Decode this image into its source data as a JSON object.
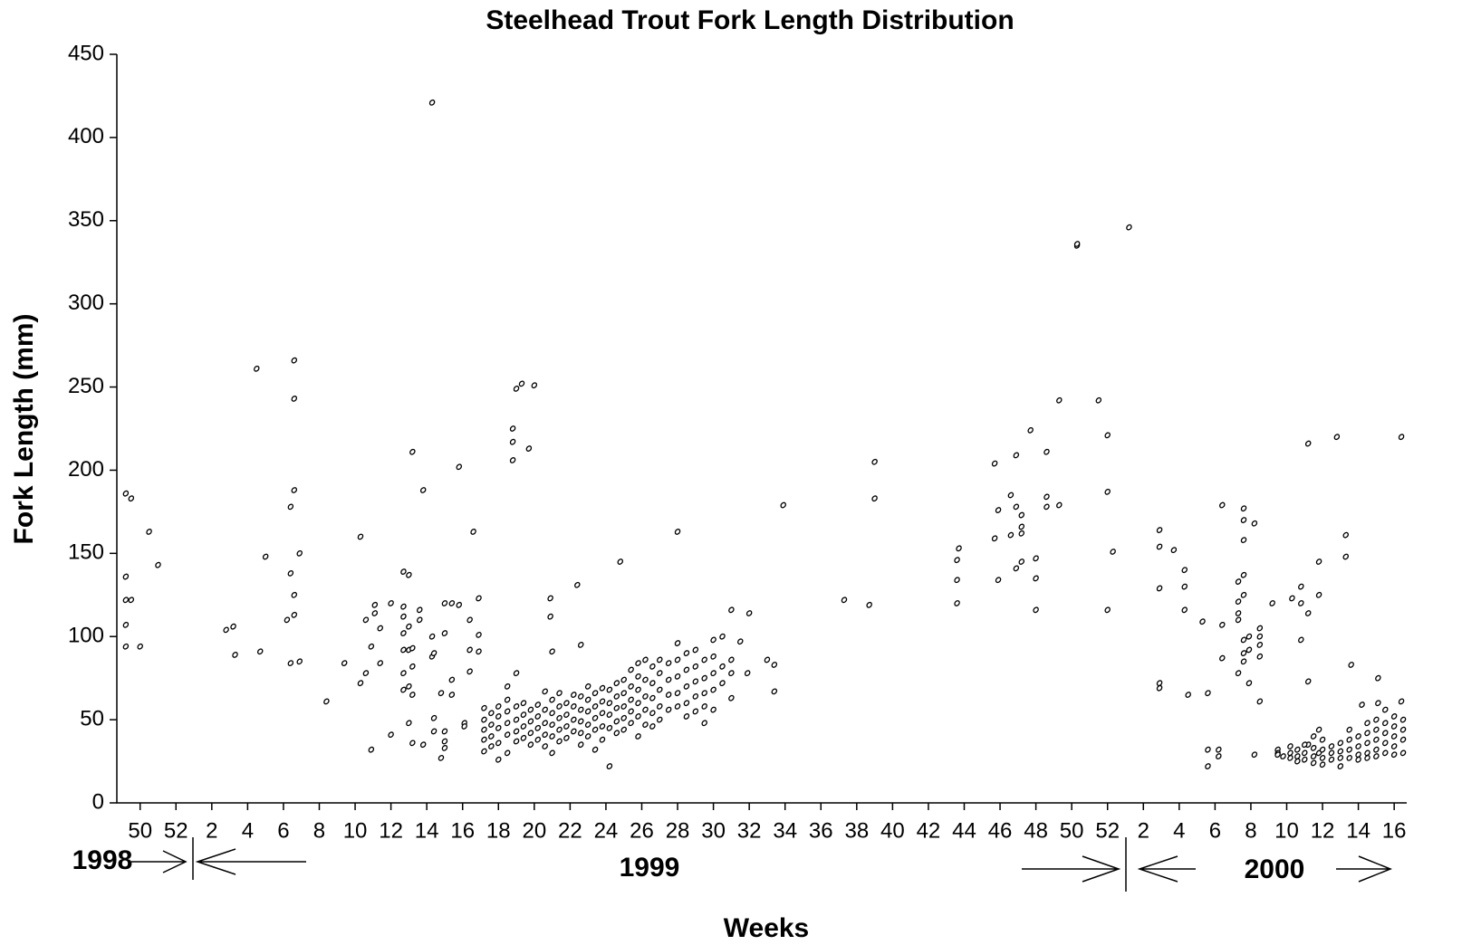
{
  "chart_data": {
    "type": "scatter",
    "title": "Steelhead Trout Fork Length Distribution",
    "xlabel": "Weeks",
    "ylabel": "Fork Length (mm)",
    "year_labels": [
      "1998",
      "1999",
      "2000"
    ],
    "color": "#000000",
    "xlim": [
      48.7,
      120.7
    ],
    "ylim": [
      0,
      450
    ],
    "yticks": [
      0,
      50,
      100,
      150,
      200,
      250,
      300,
      350,
      400,
      450
    ],
    "xticks": [
      50,
      52,
      {
        "value": 54,
        "label": "2"
      },
      {
        "value": 56,
        "label": "4"
      },
      {
        "value": 58,
        "label": "6"
      },
      {
        "value": 60,
        "label": "8"
      },
      {
        "value": 62,
        "label": "10"
      },
      {
        "value": 64,
        "label": "12"
      },
      {
        "value": 66,
        "label": "14"
      },
      {
        "value": 68,
        "label": "16"
      },
      {
        "value": 70,
        "label": "18"
      },
      {
        "value": 72,
        "label": "20"
      },
      {
        "value": 74,
        "label": "22"
      },
      {
        "value": 76,
        "label": "24"
      },
      {
        "value": 78,
        "label": "26"
      },
      {
        "value": 80,
        "label": "28"
      },
      {
        "value": 82,
        "label": "30"
      },
      {
        "value": 84,
        "label": "32"
      },
      {
        "value": 86,
        "label": "34"
      },
      {
        "value": 88,
        "label": "36"
      },
      {
        "value": 90,
        "label": "38"
      },
      {
        "value": 92,
        "label": "40"
      },
      {
        "value": 94,
        "label": "42"
      },
      {
        "value": 96,
        "label": "44"
      },
      {
        "value": 98,
        "label": "46"
      },
      {
        "value": 100,
        "label": "48"
      },
      {
        "value": 102,
        "label": "50"
      },
      {
        "value": 104,
        "label": "52"
      },
      {
        "value": 106,
        "label": "2"
      },
      {
        "value": 108,
        "label": "4"
      },
      {
        "value": 110,
        "label": "6"
      },
      {
        "value": 112,
        "label": "8"
      },
      {
        "value": 114,
        "label": "10"
      },
      {
        "value": 116,
        "label": "12"
      },
      {
        "value": 118,
        "label": "14"
      },
      {
        "value": 120,
        "label": "16"
      }
    ],
    "x": [
      49.2,
      49.2,
      49.2,
      49.2,
      49.2,
      49.5,
      49.5,
      50,
      50.5,
      51,
      54.8,
      55.2,
      55.3,
      56.5,
      56.7,
      57,
      58.2,
      58.4,
      58.4,
      58.4,
      58.6,
      58.6,
      58.6,
      58.6,
      58.6,
      58.9,
      58.9,
      60.4,
      61.4,
      62.3,
      62.3,
      62.6,
      62.6,
      62.9,
      62.9,
      63.1,
      63.1,
      63.4,
      63.4,
      64,
      64,
      64.7,
      64.7,
      64.7,
      64.7,
      64.7,
      64.7,
      64.7,
      65,
      65,
      65,
      65,
      65,
      65.2,
      65.2,
      65.2,
      65.2,
      65.2,
      65.6,
      65.6,
      65.8,
      65.8,
      66.3,
      66.3,
      66.3,
      66.4,
      66.4,
      66.4,
      66.8,
      66.8,
      67,
      67,
      67,
      67,
      67,
      67.4,
      67.4,
      67.4,
      67.8,
      67.8,
      68.1,
      68.1,
      68.4,
      68.4,
      68.4,
      68.6,
      68.9,
      68.9,
      68.9,
      69.2,
      69.2,
      69.2,
      69.2,
      69.2,
      69.6,
      69.6,
      69.6,
      69.6,
      70,
      70,
      70,
      70,
      70,
      70.5,
      70.5,
      70.5,
      70.5,
      70.5,
      70.5,
      71,
      71,
      71,
      71,
      71,
      71.4,
      71.4,
      71.4,
      71.4,
      71.8,
      71.8,
      71.8,
      71.8,
      72.2,
      72.2,
      72.2,
      72.2,
      72.6,
      72.6,
      72.6,
      72.6,
      72.6,
      73,
      73,
      73,
      73,
      73,
      73.4,
      73.4,
      73.4,
      73.4,
      73.4,
      73.8,
      73.8,
      73.8,
      73.8,
      74.2,
      74.2,
      74.2,
      74.2,
      74.6,
      74.6,
      74.6,
      74.6,
      74.6,
      75,
      75,
      75,
      75,
      75,
      75.4,
      75.4,
      75.4,
      75.4,
      75.4,
      75.8,
      75.8,
      75.8,
      75.8,
      75.8,
      76.2,
      76.2,
      76.2,
      76.2,
      76.2,
      76.6,
      76.6,
      76.6,
      76.6,
      76.6,
      77,
      77,
      77,
      77,
      77,
      77.4,
      77.4,
      77.4,
      77.4,
      77.4,
      77.8,
      77.8,
      77.8,
      77.8,
      77.8,
      77.8,
      78.2,
      78.2,
      78.2,
      78.2,
      78.2,
      78.6,
      78.6,
      78.6,
      78.6,
      78.6,
      79,
      79,
      79,
      79,
      79,
      79.5,
      79.5,
      79.5,
      79.5,
      80,
      80,
      80,
      80,
      80,
      80.5,
      80.5,
      80.5,
      80.5,
      80.5,
      81,
      81,
      81,
      81,
      81,
      81.5,
      81.5,
      81.5,
      81.5,
      81.5,
      82,
      82,
      82,
      82,
      82,
      82.5,
      82.5,
      82.5,
      83,
      83,
      83,
      83,
      83.5,
      84,
      70.8,
      70.8,
      70.8,
      71,
      71.3,
      71.7,
      72,
      72.9,
      72.9,
      73,
      74.4,
      74.6,
      76.8,
      80,
      83.9,
      85,
      85.4,
      85.4,
      85.9,
      89.3,
      90.7,
      91,
      91,
      95.6,
      95.6,
      95.6,
      95.7,
      97.7,
      97.7,
      97.9,
      97.9,
      98.6,
      98.6,
      98.9,
      98.9,
      98.9,
      99.2,
      99.2,
      99.2,
      99.2,
      99.7,
      100,
      100,
      100,
      100.6,
      100.6,
      100.6,
      101.3,
      101.3,
      102.3,
      102.3,
      103.5,
      104,
      104,
      104,
      104.3,
      105.2,
      106.9,
      106.9,
      106.9,
      106.9,
      106.9,
      107.7,
      108.3,
      108.3,
      108.3,
      108.5,
      109.3,
      109.6,
      109.6,
      109.6,
      110.2,
      110.2,
      110.4,
      110.4,
      110.4,
      111.3,
      111.3,
      111.3,
      111.3,
      111.3,
      111.6,
      111.6,
      111.6,
      111.6,
      111.6,
      111.6,
      111.6,
      111.6,
      111.9,
      111.9,
      111.9,
      112.2,
      112.2,
      112.5,
      112.5,
      112.5,
      112.5,
      112.5,
      113.2,
      113.5,
      113.5,
      113.5,
      113.8,
      114.3,
      114.8,
      114.8,
      114.8,
      115.2,
      115.2,
      115.2,
      115.2,
      115.8,
      115.8,
      115.8,
      115.8,
      116.8,
      117.3,
      117.3,
      117.6,
      118.2,
      119.1,
      119.1,
      120.4,
      120.4,
      114.2,
      114.2,
      114.2,
      114.6,
      114.6,
      114.6,
      115,
      115,
      115,
      115.5,
      115.5,
      115.5,
      115.5,
      116,
      116,
      116,
      116,
      116.5,
      116.5,
      116.5,
      117,
      117,
      117,
      117,
      117.5,
      117.5,
      117.5,
      117.5,
      118,
      118,
      118,
      118,
      118.5,
      118.5,
      118.5,
      118.5,
      118.5,
      119,
      119,
      119,
      119,
      119,
      119.5,
      119.5,
      119.5,
      119.5,
      119.5,
      120,
      120,
      120,
      120,
      120,
      120.5,
      120.5,
      120.5,
      120.5
    ],
    "values": [
      186,
      136,
      107,
      94,
      122,
      183,
      122,
      94,
      163,
      143,
      104,
      106,
      89,
      261,
      91,
      148,
      110,
      178,
      138,
      84,
      266,
      243,
      188,
      125,
      113,
      150,
      85,
      61,
      84,
      160,
      72,
      110,
      78,
      94,
      32,
      114,
      119,
      105,
      84,
      41,
      120,
      139,
      118,
      112,
      102,
      92,
      78,
      68,
      137,
      106,
      92,
      70,
      48,
      211,
      93,
      82,
      65,
      36,
      116,
      110,
      188,
      35,
      421,
      100,
      88,
      90,
      51,
      43,
      27,
      66,
      120,
      102,
      43,
      37,
      33,
      120,
      74,
      65,
      202,
      119,
      48,
      46,
      110,
      92,
      79,
      163,
      123,
      101,
      91,
      57,
      50,
      44,
      38,
      31,
      54,
      47,
      40,
      34,
      58,
      52,
      45,
      36,
      26,
      70,
      62,
      55,
      48,
      41,
      30,
      78,
      58,
      50,
      43,
      37,
      60,
      53,
      46,
      39,
      56,
      49,
      42,
      35,
      59,
      52,
      45,
      38,
      67,
      56,
      48,
      41,
      34,
      62,
      54,
      47,
      40,
      30,
      66,
      58,
      51,
      44,
      37,
      60,
      53,
      46,
      39,
      65,
      58,
      50,
      43,
      64,
      56,
      49,
      42,
      35,
      70,
      62,
      55,
      47,
      40,
      66,
      58,
      51,
      44,
      32,
      69,
      61,
      54,
      46,
      38,
      68,
      60,
      53,
      45,
      22,
      72,
      64,
      57,
      49,
      42,
      74,
      66,
      58,
      51,
      44,
      80,
      70,
      62,
      55,
      48,
      84,
      76,
      68,
      60,
      52,
      40,
      86,
      74,
      64,
      56,
      47,
      82,
      72,
      63,
      54,
      46,
      86,
      78,
      68,
      58,
      50,
      84,
      74,
      65,
      56,
      96,
      86,
      76,
      66,
      58,
      90,
      80,
      70,
      60,
      52,
      92,
      82,
      73,
      64,
      55,
      86,
      75,
      66,
      58,
      48,
      98,
      88,
      78,
      68,
      56,
      100,
      82,
      72,
      116,
      86,
      78,
      63,
      97,
      114,
      225,
      217,
      206,
      249,
      252,
      213,
      251,
      123,
      112,
      91,
      131,
      95,
      145,
      163,
      78,
      86,
      83,
      67,
      179,
      122,
      119,
      205,
      183,
      146,
      134,
      120,
      153,
      204,
      159,
      176,
      134,
      185,
      161,
      209,
      178,
      141,
      173,
      166,
      162,
      145,
      224,
      147,
      135,
      116,
      211,
      184,
      178,
      242,
      179,
      335,
      336,
      242,
      221,
      187,
      116,
      151,
      346,
      164,
      154,
      129,
      72,
      69,
      152,
      140,
      130,
      116,
      65,
      109,
      66,
      32,
      22,
      32,
      28,
      179,
      107,
      87,
      133,
      121,
      114,
      110,
      78,
      177,
      170,
      158,
      137,
      125,
      98,
      90,
      85,
      100,
      92,
      72,
      168,
      29,
      105,
      100,
      95,
      88,
      61,
      120,
      32,
      30,
      29,
      28,
      123,
      130,
      120,
      98,
      216,
      114,
      73,
      35,
      145,
      125,
      44,
      30,
      220,
      161,
      148,
      83,
      59,
      75,
      60,
      220,
      61,
      34,
      30,
      27,
      32,
      28,
      25,
      35,
      30,
      26,
      40,
      33,
      28,
      24,
      38,
      32,
      27,
      23,
      34,
      30,
      26,
      36,
      31,
      27,
      22,
      44,
      38,
      32,
      27,
      40,
      34,
      29,
      26,
      48,
      42,
      36,
      30,
      27,
      50,
      44,
      38,
      32,
      28,
      56,
      48,
      42,
      36,
      30,
      52,
      46,
      40,
      34,
      29,
      50,
      44,
      38,
      30
    ]
  }
}
